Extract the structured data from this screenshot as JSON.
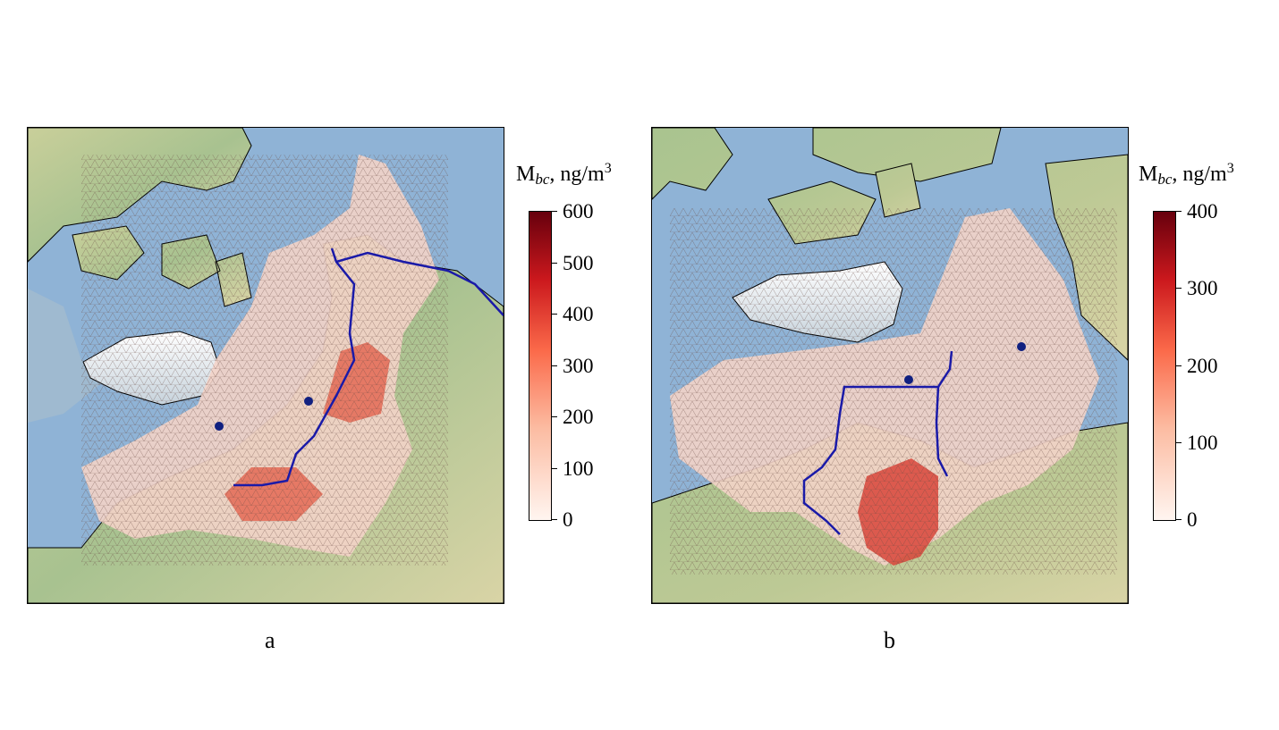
{
  "panels": [
    {
      "label": "a",
      "colorbar": {
        "title_main": "M",
        "title_sub": "bc",
        "title_rest": ", ng/m",
        "title_sup": "3",
        "ticks": [
          "0",
          "100",
          "200",
          "300",
          "400",
          "500",
          "600"
        ],
        "min": 0,
        "max": 600,
        "colormap": "Reds"
      },
      "markers": 2,
      "track_color": "#1a1aa8"
    },
    {
      "label": "b",
      "colorbar": {
        "title_main": "M",
        "title_sub": "bc",
        "title_rest": ", ng/m",
        "title_sup": "3",
        "ticks": [
          "0",
          "100",
          "200",
          "300",
          "400"
        ],
        "min": 0,
        "max": 400,
        "colormap": "Reds"
      },
      "markers": 2,
      "track_color": "#1a1aa8"
    }
  ],
  "colors": {
    "ocean": "#8fb3d6",
    "land_green": "#a9c48f",
    "land_tan": "#d8d3a0",
    "ice": "#eef2f6",
    "track": "#1a1aa8",
    "marker": "#102080",
    "coast": "#000000"
  }
}
